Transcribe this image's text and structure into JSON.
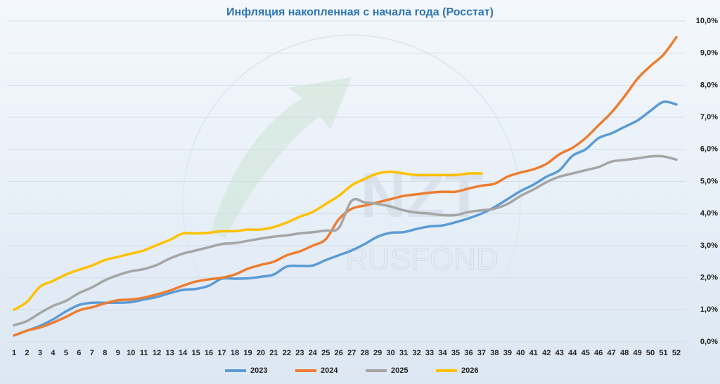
{
  "chart_data": {
    "type": "line",
    "title": "Инфляция накопленная с начала года (Росстат)",
    "watermark": "NZT",
    "watermark_sub": "RUSFOND",
    "categories": [
      1,
      2,
      3,
      4,
      5,
      6,
      7,
      8,
      9,
      10,
      11,
      12,
      13,
      14,
      15,
      16,
      17,
      18,
      19,
      20,
      21,
      22,
      23,
      24,
      25,
      26,
      27,
      28,
      29,
      30,
      31,
      32,
      33,
      34,
      35,
      36,
      37,
      38,
      39,
      40,
      41,
      42,
      43,
      44,
      45,
      46,
      47,
      48,
      49,
      50,
      51,
      52
    ],
    "series": [
      {
        "name": "2023",
        "color": "#5b9bd5",
        "values": [
          0.2,
          0.35,
          0.5,
          0.7,
          0.95,
          1.15,
          1.22,
          1.22,
          1.22,
          1.24,
          1.32,
          1.4,
          1.52,
          1.62,
          1.65,
          1.75,
          1.97,
          1.97,
          1.98,
          2.03,
          2.1,
          2.35,
          2.37,
          2.38,
          2.55,
          2.7,
          2.85,
          3.05,
          3.28,
          3.4,
          3.42,
          3.52,
          3.6,
          3.63,
          3.73,
          3.85,
          4.0,
          4.2,
          4.45,
          4.7,
          4.9,
          5.15,
          5.35,
          5.8,
          6.0,
          6.35,
          6.5,
          6.7,
          6.9,
          7.2,
          7.48,
          7.4
        ]
      },
      {
        "name": "2024",
        "color": "#ed7d31",
        "values": [
          0.2,
          0.35,
          0.45,
          0.6,
          0.78,
          0.98,
          1.08,
          1.2,
          1.3,
          1.32,
          1.38,
          1.48,
          1.6,
          1.75,
          1.88,
          1.95,
          2.0,
          2.1,
          2.28,
          2.4,
          2.5,
          2.7,
          2.82,
          3.0,
          3.2,
          3.82,
          4.15,
          4.25,
          4.35,
          4.45,
          4.55,
          4.6,
          4.65,
          4.68,
          4.68,
          4.78,
          4.87,
          4.93,
          5.15,
          5.28,
          5.38,
          5.55,
          5.85,
          6.05,
          6.35,
          6.75,
          7.15,
          7.65,
          8.2,
          8.6,
          8.95,
          9.5
        ]
      },
      {
        "name": "2025",
        "color": "#a5a5a5",
        "values": [
          0.52,
          0.65,
          0.9,
          1.12,
          1.28,
          1.52,
          1.7,
          1.92,
          2.08,
          2.2,
          2.27,
          2.4,
          2.6,
          2.75,
          2.85,
          2.95,
          3.05,
          3.08,
          3.15,
          3.22,
          3.28,
          3.32,
          3.38,
          3.42,
          3.47,
          3.55,
          4.4,
          4.35,
          4.3,
          4.22,
          4.1,
          4.03,
          4.0,
          3.95,
          3.95,
          4.05,
          4.1,
          4.15,
          4.3,
          4.55,
          4.75,
          4.98,
          5.15,
          5.25,
          5.35,
          5.45,
          5.62,
          5.67,
          5.72,
          5.78,
          5.78,
          5.68
        ]
      },
      {
        "name": "2026",
        "color": "#ffc000",
        "values": [
          1.0,
          1.25,
          1.72,
          1.9,
          2.1,
          2.25,
          2.38,
          2.55,
          2.65,
          2.75,
          2.85,
          3.02,
          3.18,
          3.38,
          3.38,
          3.4,
          3.45,
          3.45,
          3.5,
          3.5,
          3.58,
          3.72,
          3.9,
          4.05,
          4.3,
          4.55,
          4.88,
          5.08,
          5.25,
          5.3,
          5.25,
          5.2,
          5.2,
          5.2,
          5.2,
          5.25,
          5.25,
          null,
          null,
          null,
          null,
          null,
          null,
          null,
          null,
          null,
          null,
          null,
          null,
          null,
          null,
          null
        ]
      }
    ],
    "ylim": [
      0,
      10
    ],
    "yticks": [
      {
        "value": 0,
        "label": "0,0%"
      },
      {
        "value": 1,
        "label": "1,0%"
      },
      {
        "value": 2,
        "label": "2,0%"
      },
      {
        "value": 3,
        "label": "3,0%"
      },
      {
        "value": 4,
        "label": "4,0%"
      },
      {
        "value": 5,
        "label": "5,0%"
      },
      {
        "value": 6,
        "label": "6,0%"
      },
      {
        "value": 7,
        "label": "7,0%"
      },
      {
        "value": 8,
        "label": "8,0%"
      },
      {
        "value": 9,
        "label": "9,0%"
      },
      {
        "value": 10,
        "label": "10,0%"
      }
    ],
    "grid": true,
    "legend": "bottom"
  }
}
